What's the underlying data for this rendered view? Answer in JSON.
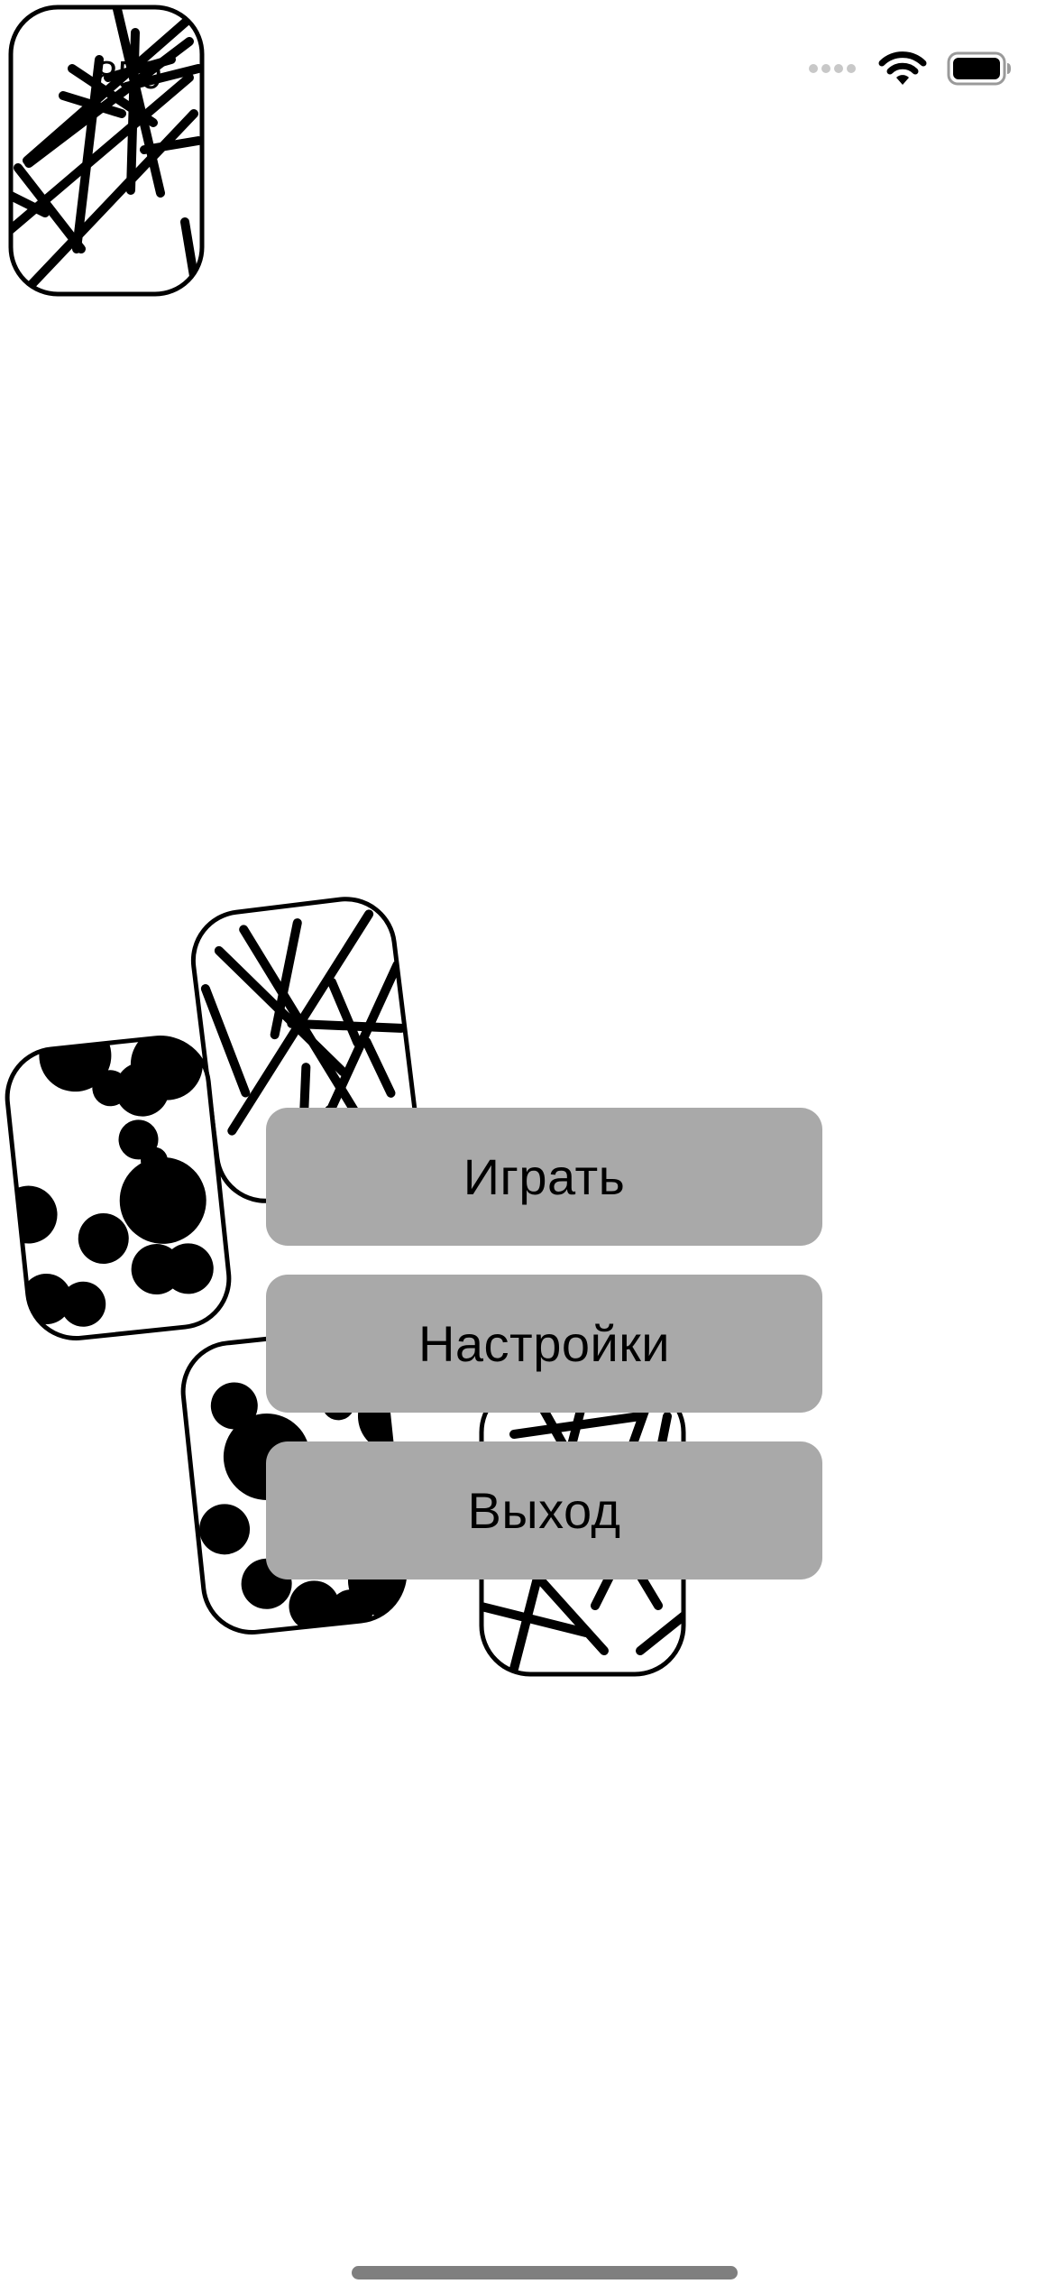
{
  "status_bar": {
    "signal_icon": "cellular-signal-dots",
    "wifi_icon": "wifi-icon",
    "battery_icon": "battery-full-icon"
  },
  "deck": {
    "top_card_icon": "scribble-lines-card",
    "top_card_label": "850"
  },
  "scattered_cards": [
    {
      "name": "card-lines",
      "pattern": "lines"
    },
    {
      "name": "card-dots",
      "pattern": "dots"
    },
    {
      "name": "card-dots",
      "pattern": "dots"
    },
    {
      "name": "card-lines",
      "pattern": "lines"
    }
  ],
  "menu": {
    "play_label": "Играть",
    "settings_label": "Настройки",
    "exit_label": "Выход"
  },
  "colors": {
    "button_bg": "#a9a9a9",
    "ink": "#000000",
    "background": "#ffffff"
  }
}
